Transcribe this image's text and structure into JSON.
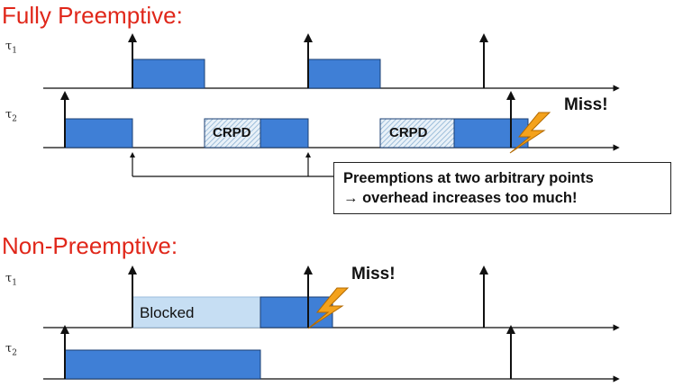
{
  "sections": {
    "fully_preemptive_title": "Fully Preemptive:",
    "non_preemptive_title": "Non-Preemptive:"
  },
  "tasks": {
    "tau1_symbol": "τ",
    "tau1_index": "1",
    "tau2_symbol": "τ",
    "tau2_index": "2"
  },
  "labels": {
    "crpd": "CRPD",
    "miss": "Miss!",
    "blocked": "Blocked"
  },
  "callout": {
    "line1": "Preemptions at two arbitrary points",
    "line2": "→ overhead increases too much!"
  },
  "colors": {
    "title_red": "#e0271a",
    "job_blue": "#3f7fd6",
    "blocked_blue": "#c6def3",
    "crpd_hatch": "#9fc3e0",
    "lightning": "#f4a21c"
  }
}
